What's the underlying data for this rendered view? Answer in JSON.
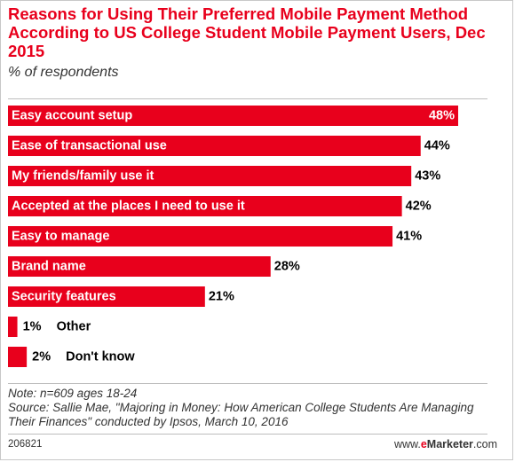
{
  "header": {
    "title": "Reasons for Using Their Preferred Mobile Payment Method According to US College Student Mobile Payment Users, Dec 2015",
    "subtitle": "% of respondents"
  },
  "chart_data": {
    "type": "bar",
    "orientation": "horizontal",
    "categories": [
      "Easy account setup",
      "Ease of transactional use",
      "My friends/family use it",
      "Accepted at the places I need to use it",
      "Easy to manage",
      "Brand name",
      "Security features",
      "Other",
      "Don't know"
    ],
    "values": [
      48,
      44,
      43,
      42,
      41,
      28,
      21,
      1,
      2
    ],
    "value_labels": [
      "48%",
      "44%",
      "43%",
      "42%",
      "41%",
      "28%",
      "21%",
      "1%",
      "2%"
    ],
    "bar_color": "#e8001c",
    "label_color_inside": "#ffffff",
    "label_color_outside": "#000000",
    "xlim": [
      0,
      48
    ],
    "grid": false,
    "legend": "none"
  },
  "footer": {
    "note": "Note: n=609 ages 18-24",
    "source": "Source: Sallie Mae, \"Majoring in Money: How American College Students Are Managing Their Finances\" conducted by Ipsos, March 10, 2016",
    "chart_id": "206821",
    "brand_prefix": "www.",
    "brand_accent": "e",
    "brand_name": "Marketer",
    "brand_suffix": ".com"
  }
}
